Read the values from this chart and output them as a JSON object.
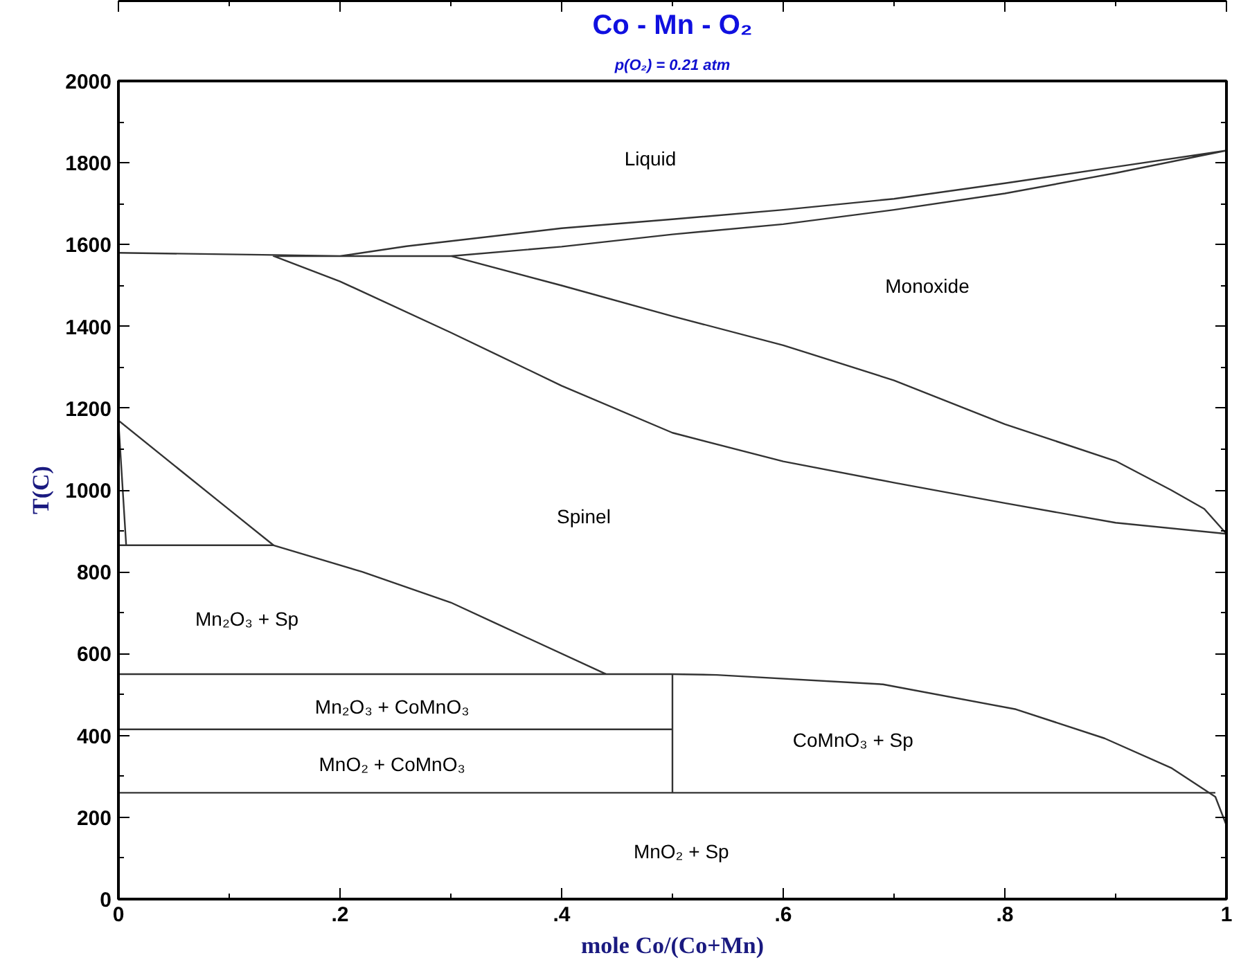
{
  "chart_data": {
    "type": "line",
    "title": "Co - Mn - O₂",
    "subtitle": "p(O₂) = 0.21 atm",
    "xlabel": "mole Co/(Co+Mn)",
    "ylabel": "T(C)",
    "xlim": [
      0,
      1
    ],
    "ylim": [
      0,
      2000
    ],
    "xticks": [
      0,
      {
        "value": 0.1,
        "label": null
      },
      {
        "value": 0.2,
        "label": ".2"
      },
      {
        "value": 0.3,
        "label": null
      },
      {
        "value": 0.4,
        "label": ".4"
      },
      {
        "value": 0.5,
        "label": null
      },
      {
        "value": 0.6,
        "label": ".6"
      },
      {
        "value": 0.7,
        "label": null
      },
      {
        "value": 0.8,
        "label": ".8"
      },
      {
        "value": 0.9,
        "label": null
      },
      1
    ],
    "yticks": [
      0,
      {
        "value": 100,
        "label": null
      },
      200,
      {
        "value": 300,
        "label": null
      },
      400,
      {
        "value": 500,
        "label": null
      },
      600,
      {
        "value": 700,
        "label": null
      },
      800,
      {
        "value": 900,
        "label": null
      },
      1000,
      {
        "value": 1100,
        "label": null
      },
      1200,
      {
        "value": 1300,
        "label": null
      },
      1400,
      {
        "value": 1500,
        "label": null
      },
      1600,
      {
        "value": 1700,
        "label": null
      },
      1800,
      {
        "value": 1900,
        "label": null
      },
      2000
    ],
    "grid": false,
    "marker": "none",
    "line_style": "solid",
    "series": [
      {
        "color": "#333333",
        "x": [
          0,
          0.13,
          0.2,
          0.26,
          0.4,
          0.5,
          0.6,
          0.7,
          0.8,
          0.9,
          1,
          0.9,
          0.8,
          0.7,
          0.6,
          0.5,
          0.4,
          0.3,
          0.14,
          0.2,
          0.3,
          0.4,
          0.5,
          0.6,
          0.7,
          0.8,
          0.9,
          1,
          0.98,
          0.95,
          0.9,
          0.8,
          0.7,
          0.6,
          0.5,
          0.4,
          0.3
        ],
        "values": [
          1580,
          1575,
          1572,
          1596,
          1640,
          1662,
          1685,
          1712,
          1750,
          1790,
          1830,
          1775,
          1725,
          1685,
          1650,
          1625,
          1595,
          1572,
          1572,
          1510,
          1385,
          1255,
          1140,
          1070,
          1018,
          968,
          920,
          893,
          954,
          1000,
          1071,
          1161,
          1268,
          1354,
          1425,
          1500,
          1572
        ]
      },
      {
        "color": "#333333",
        "x": [
          0.007,
          0,
          0.094,
          0.14
        ],
        "values": [
          865,
          1170,
          965,
          865
        ]
      },
      {
        "color": "#333333",
        "x": [
          0,
          0.14,
          0.22,
          0.3,
          0.34,
          0.44
        ],
        "values": [
          865,
          865,
          800,
          725,
          675,
          550
        ]
      },
      {
        "color": "#333333",
        "x": [
          0,
          0.5,
          0.54,
          0.69,
          0.81,
          0.89,
          0.95,
          0.99,
          1
        ],
        "values": [
          550,
          550,
          548,
          525,
          464,
          393,
          321,
          250,
          180
        ]
      },
      {
        "color": "#333333",
        "x": [
          0,
          0.5
        ],
        "values": [
          415,
          415
        ]
      },
      {
        "color": "#333333",
        "x": [
          0.5,
          0.5
        ],
        "values": [
          260,
          550
        ]
      },
      {
        "color": "#333333",
        "x": [
          0,
          0.99
        ],
        "values": [
          260,
          260
        ]
      }
    ],
    "annotations": [
      "Liquid",
      "Monoxide",
      "Spinel",
      "Mn₂O₃ + Sp",
      "Mn₂O₃ + CoMnO₃",
      "MnO₂ + CoMnO₃",
      "CoMnO₃ + Sp",
      "MnO₂ + Sp"
    ]
  }
}
